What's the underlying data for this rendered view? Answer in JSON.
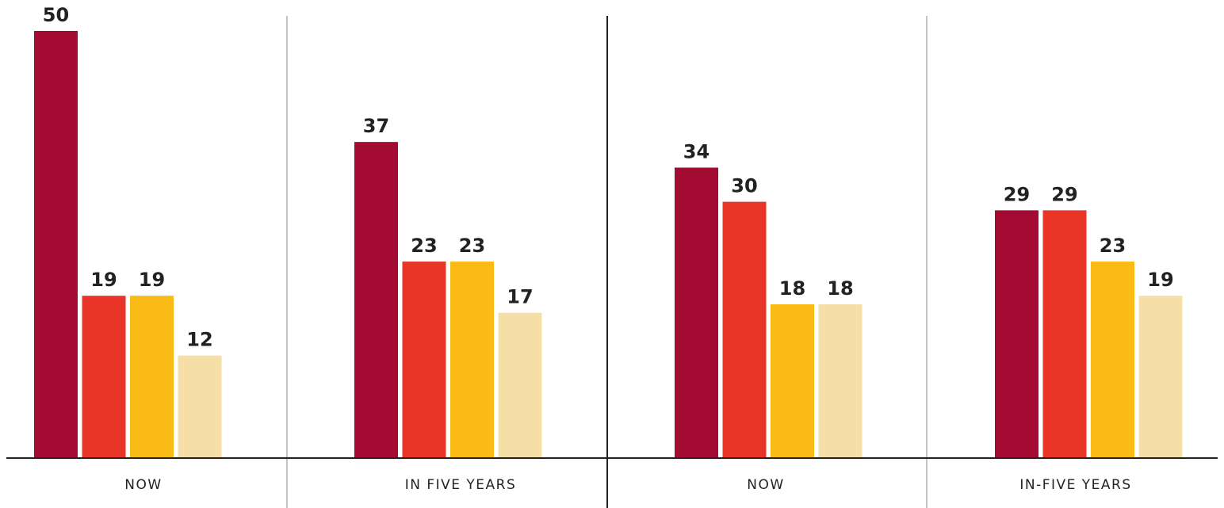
{
  "chart_data": {
    "type": "bar",
    "categories": [
      "NOW",
      "IN FIVE YEARS",
      "NOW",
      "IN-FIVE YEARS"
    ],
    "series": [
      {
        "values": [
          50,
          37,
          34,
          29
        ],
        "color": "#a30b33"
      },
      {
        "values": [
          19,
          23,
          30,
          29
        ],
        "color": "#e83527"
      },
      {
        "values": [
          19,
          23,
          18,
          23
        ],
        "color": "#fbbb16"
      },
      {
        "values": [
          12,
          17,
          18,
          19
        ],
        "color": "#f6dfa6"
      }
    ],
    "ylim": [
      0,
      50
    ],
    "grid": false
  }
}
